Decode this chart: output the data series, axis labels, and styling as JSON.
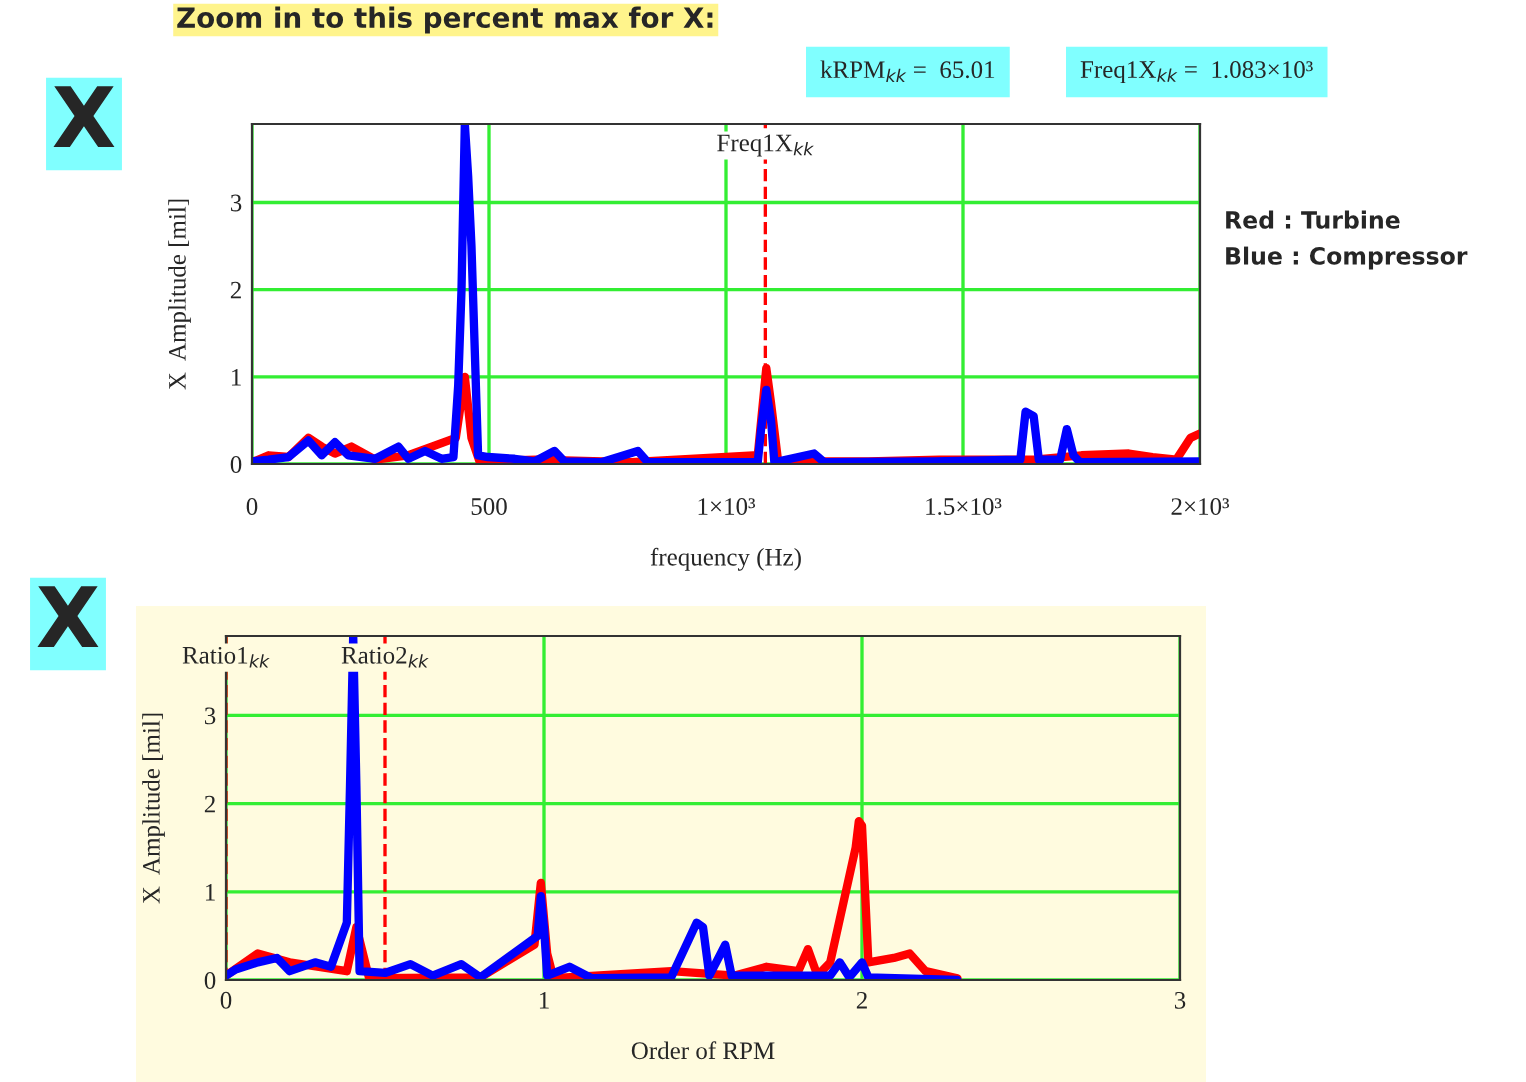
{
  "chart_data": [
    {
      "type": "line",
      "xlabel": "frequency (Hz)",
      "ylabel": "X  Amplitude [mil]",
      "xlim": [
        0,
        2000
      ],
      "ylim": [
        0,
        3.9
      ],
      "xticks": [
        0,
        500,
        {
          "value": 1000,
          "label": "1×10³"
        },
        {
          "value": 1500,
          "label": "1.5×10³"
        },
        {
          "value": 2000,
          "label": "2×10³"
        }
      ],
      "yticks": [
        0,
        1,
        2,
        3
      ],
      "grid": true,
      "line_style": "solid",
      "marker": "none",
      "ref_lines": [
        {
          "axis": "x",
          "value": 1083,
          "label": "Freq1X$_{kk}$",
          "color": "#ff0000",
          "line_style": "dashed"
        }
      ],
      "annotations": [
        "Zoom in to this percent max for X:",
        "X",
        "kRPM$_{kk}$ =  65.01",
        "Freq1X$_{kk}$ =  1.083×10³",
        "Red : Turbine",
        "Blue : Compressor"
      ],
      "series": [
        {
          "color": "#ff0000",
          "x": [
            0,
            35,
            77,
            119,
            147,
            175,
            210,
            260,
            330,
            430,
            449,
            463,
            480,
            600,
            800,
            1067,
            1085,
            1095,
            1110,
            1300,
            1450,
            1650,
            1750,
            1850,
            1900,
            1950,
            1980,
            2000
          ],
          "values": [
            0.02,
            0.1,
            0.08,
            0.3,
            0.2,
            0.12,
            0.2,
            0.05,
            0.1,
            0.3,
            1.0,
            0.3,
            0.03,
            0.05,
            0.02,
            0.1,
            1.1,
            0.7,
            0.03,
            0.03,
            0.05,
            0.05,
            0.1,
            0.12,
            0.08,
            0.05,
            0.3,
            0.35
          ]
        },
        {
          "color": "#0000ff",
          "x": [
            0,
            35,
            77,
            119,
            147,
            175,
            203,
            260,
            309,
            330,
            365,
            400,
            425,
            435,
            442,
            449,
            456,
            463,
            470,
            477,
            498,
            554,
            596,
            638,
            659,
            737,
            814,
            835,
            905,
            1067,
            1074,
            1085,
            1095,
            1102,
            1186,
            1207,
            1439,
            1621,
            1632,
            1649,
            1660,
            1705,
            1719,
            1733,
            1747,
            2000
          ],
          "values": [
            0.03,
            0.05,
            0.08,
            0.27,
            0.1,
            0.25,
            0.1,
            0.06,
            0.2,
            0.06,
            0.15,
            0.06,
            0.08,
            0.9,
            2.0,
            3.9,
            3.3,
            2.5,
            1.3,
            0.1,
            0.08,
            0.06,
            0.03,
            0.15,
            0.03,
            0.02,
            0.15,
            0.02,
            0.02,
            0.02,
            0.4,
            0.85,
            0.5,
            0.02,
            0.12,
            0.02,
            0.03,
            0.05,
            0.6,
            0.55,
            0.05,
            0.05,
            0.4,
            0.1,
            0.02,
            0.03
          ]
        }
      ]
    },
    {
      "type": "line",
      "xlabel": "Order of RPM",
      "ylabel": "X  Amplitude [mil]",
      "xlim": [
        0,
        3
      ],
      "ylim": [
        0,
        3.9
      ],
      "xticks": [
        0,
        1,
        2,
        3
      ],
      "yticks": [
        0,
        1,
        2,
        3
      ],
      "grid": true,
      "line_style": "solid",
      "marker": "none",
      "ref_lines": [
        {
          "axis": "x",
          "value": 0,
          "label": "Ratio1$_{kk}$",
          "color": "#ff0000",
          "line_style": "dashed"
        },
        {
          "axis": "x",
          "value": 0.5,
          "label": "Ratio2$_{kk}$",
          "color": "#ff0000",
          "line_style": "dashed"
        }
      ],
      "annotations": [
        "X"
      ],
      "series": [
        {
          "color": "#ff0000",
          "x": [
            0,
            0.1,
            0.2,
            0.38,
            0.41,
            0.45,
            0.8,
            0.97,
            0.99,
            1.01,
            1.03,
            1.4,
            1.6,
            1.7,
            1.8,
            1.83,
            1.86,
            1.9,
            1.98,
            1.99,
            2.0,
            2.02,
            2.1,
            2.15,
            2.2,
            2.3
          ],
          "values": [
            0.05,
            0.3,
            0.2,
            0.1,
            0.6,
            0.02,
            0.03,
            0.4,
            1.1,
            0.3,
            0.02,
            0.1,
            0.05,
            0.15,
            0.1,
            0.35,
            0.05,
            0.2,
            1.5,
            1.8,
            1.75,
            0.2,
            0.25,
            0.3,
            0.1,
            0.02
          ]
        },
        {
          "color": "#0000ff",
          "x": [
            0,
            0.03,
            0.1,
            0.16,
            0.2,
            0.28,
            0.33,
            0.38,
            0.39,
            0.4,
            0.41,
            0.42,
            0.5,
            0.58,
            0.65,
            0.74,
            0.8,
            0.98,
            0.99,
            1.0,
            1.01,
            1.08,
            1.15,
            1.4,
            1.48,
            1.5,
            1.52,
            1.57,
            1.59,
            1.9,
            1.93,
            1.96,
            2.0,
            2.02,
            2.3
          ],
          "values": [
            0.05,
            0.12,
            0.2,
            0.25,
            0.1,
            0.2,
            0.15,
            0.65,
            2.2,
            3.9,
            2.2,
            0.1,
            0.08,
            0.18,
            0.05,
            0.18,
            0.03,
            0.5,
            0.95,
            0.6,
            0.05,
            0.15,
            0.02,
            0.03,
            0.65,
            0.6,
            0.05,
            0.4,
            0.05,
            0.05,
            0.2,
            0.03,
            0.2,
            0.03,
            0
          ]
        }
      ]
    }
  ]
}
